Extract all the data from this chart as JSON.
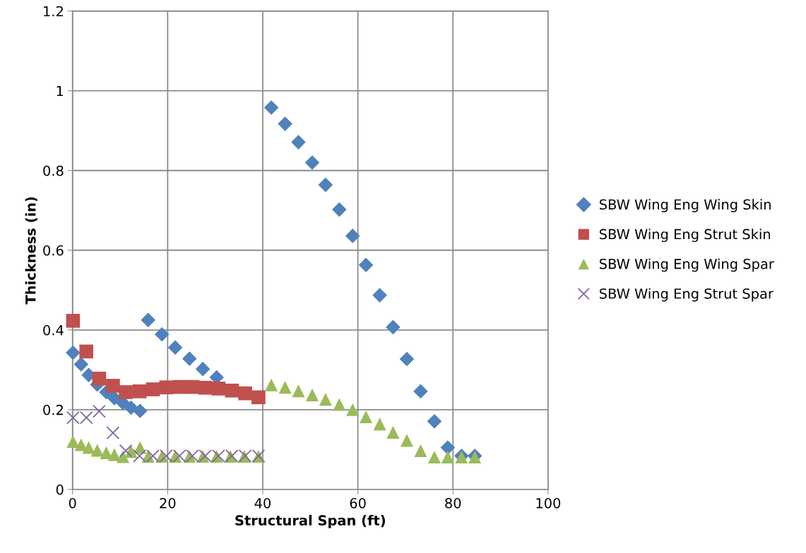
{
  "chart_data": {
    "type": "scatter",
    "xlabel": "Structural Span (ft)",
    "ylabel": "Thickness (in)",
    "xlim": [
      0,
      100
    ],
    "xticks": [
      0,
      20,
      40,
      60,
      80,
      100
    ],
    "ylim": [
      0,
      1.2
    ],
    "yticks": [
      0,
      0.2,
      0.4,
      0.6,
      0.8,
      1,
      1.2
    ],
    "grid": true,
    "legend": "right",
    "series": [
      {
        "name": "SBW Wing Eng Wing Skin",
        "color": "#4f81bd",
        "marker": "diamond",
        "x": [
          0.1,
          1.8,
          3.4,
          5.2,
          7.1,
          8.8,
          10.6,
          12.3,
          14.2,
          15.9,
          18.8,
          21.6,
          24.6,
          27.4,
          30.3,
          33.2,
          39.1,
          41.8,
          44.7,
          47.5,
          50.4,
          53.2,
          56.1,
          58.9,
          61.7,
          64.6,
          67.4,
          70.3,
          73.2,
          76.1,
          78.9,
          81.8,
          84.6
        ],
        "values": [
          0.343,
          0.314,
          0.287,
          0.263,
          0.244,
          0.229,
          0.217,
          0.205,
          0.197,
          0.425,
          0.389,
          0.356,
          0.328,
          0.302,
          0.281,
          null,
          null,
          0.958,
          0.917,
          0.871,
          0.82,
          0.764,
          0.702,
          0.636,
          0.563,
          0.487,
          0.407,
          0.327,
          0.246,
          0.171,
          0.105,
          0.084,
          0.084
        ]
      },
      {
        "name": "SBW Wing Eng Strut Skin",
        "color": "#c0504d",
        "marker": "square",
        "x": [
          0.1,
          2.9,
          5.6,
          8.5,
          11.2,
          14.1,
          16.9,
          19.7,
          22.5,
          25.2,
          27.9,
          30.7,
          33.5,
          36.3,
          39.1
        ],
        "values": [
          0.423,
          0.346,
          0.278,
          0.26,
          0.244,
          0.246,
          0.251,
          0.256,
          0.257,
          0.257,
          0.255,
          0.253,
          0.248,
          0.241,
          0.231
        ]
      },
      {
        "name": "SBW Wing Eng Wing Spar",
        "color": "#9bbb59",
        "marker": "triangle",
        "x": [
          0.1,
          1.8,
          3.4,
          5.2,
          7.1,
          8.8,
          10.6,
          12.3,
          14.2,
          15.9,
          18.8,
          21.6,
          24.6,
          27.4,
          30.3,
          33.2,
          36.1,
          39.1,
          41.8,
          44.7,
          47.5,
          50.4,
          53.2,
          56.1,
          58.9,
          61.7,
          64.6,
          67.4,
          70.3,
          73.2,
          76.1,
          78.9,
          81.8,
          84.6
        ],
        "values": [
          0.12,
          0.112,
          0.105,
          0.098,
          0.092,
          0.087,
          0.082,
          0.095,
          0.105,
          0.083,
          0.083,
          0.083,
          0.083,
          0.083,
          0.083,
          0.083,
          0.083,
          0.083,
          0.262,
          0.256,
          0.247,
          0.237,
          0.226,
          0.213,
          0.2,
          0.182,
          0.164,
          0.143,
          0.123,
          0.097,
          0.081,
          0.081,
          0.081,
          0.081
        ]
      },
      {
        "name": "SBW Wing Eng Strut Spar",
        "color": "#8064a2",
        "marker": "cross",
        "x": [
          0.1,
          2.9,
          5.6,
          8.5,
          11.2,
          14.1,
          16.9,
          19.7,
          22.5,
          25.2,
          27.9,
          30.7,
          33.5,
          36.3,
          39.1
        ],
        "values": [
          0.18,
          0.18,
          0.196,
          0.142,
          0.097,
          0.084,
          0.084,
          0.084,
          0.084,
          0.084,
          0.084,
          0.084,
          0.084,
          0.084,
          0.084
        ]
      }
    ]
  }
}
